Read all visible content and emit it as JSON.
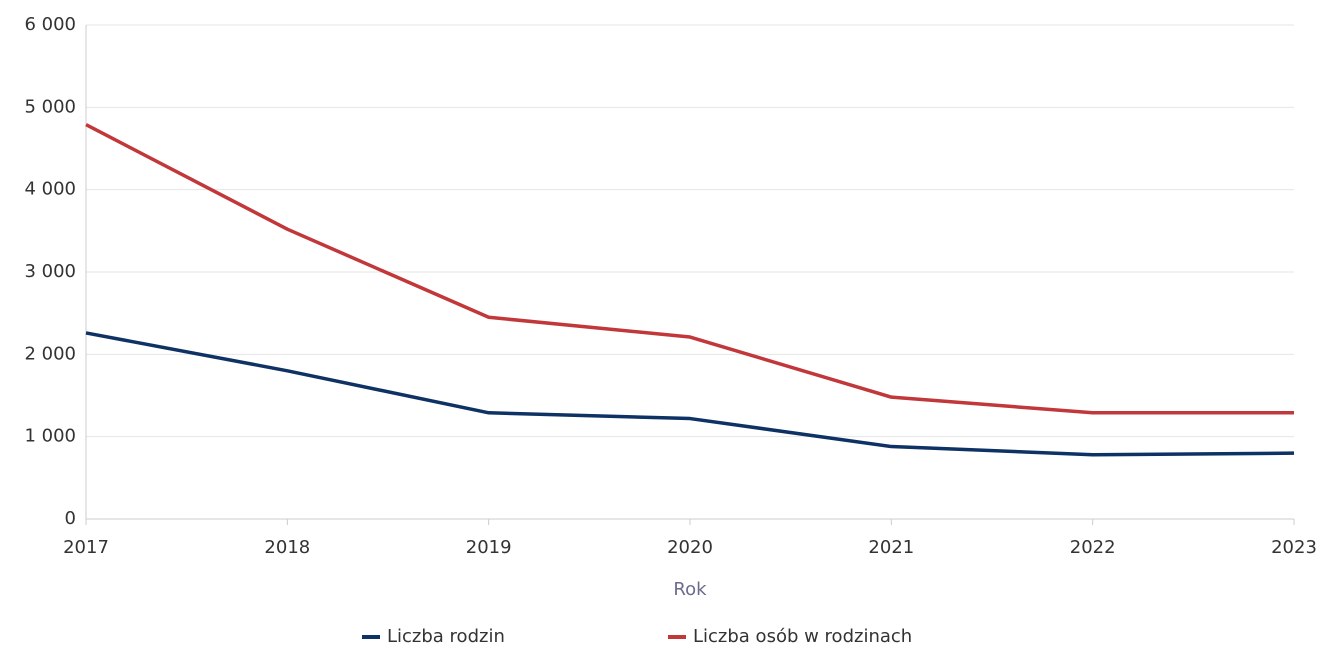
{
  "chart_data": {
    "type": "line",
    "x": [
      2017,
      2018,
      2019,
      2020,
      2021,
      2022,
      2023
    ],
    "xlim": [
      2017,
      2023
    ],
    "xticks": [
      2017,
      2018,
      2019,
      2020,
      2021,
      2022,
      2023
    ],
    "xlabel": "Rok",
    "ylim": [
      0,
      6000
    ],
    "yticks": [
      0,
      {
        "value": 1000,
        "label": "1 000"
      },
      {
        "value": 2000,
        "label": "2 000"
      },
      {
        "value": 3000,
        "label": "3 000"
      },
      {
        "value": 4000,
        "label": "4 000"
      },
      {
        "value": 5000,
        "label": "5 000"
      },
      {
        "value": 6000,
        "label": "6 000"
      }
    ],
    "grid": true,
    "legend": "bottom",
    "series": [
      {
        "name": "Liczba rodzin",
        "color": "#0e3263",
        "values": [
          2260,
          1800,
          1290,
          1220,
          880,
          780,
          800
        ]
      },
      {
        "name": "Liczba osób w rodzinach",
        "color": "#c1373a",
        "values": [
          4790,
          3520,
          2450,
          2210,
          1480,
          1290,
          1290
        ]
      }
    ]
  }
}
